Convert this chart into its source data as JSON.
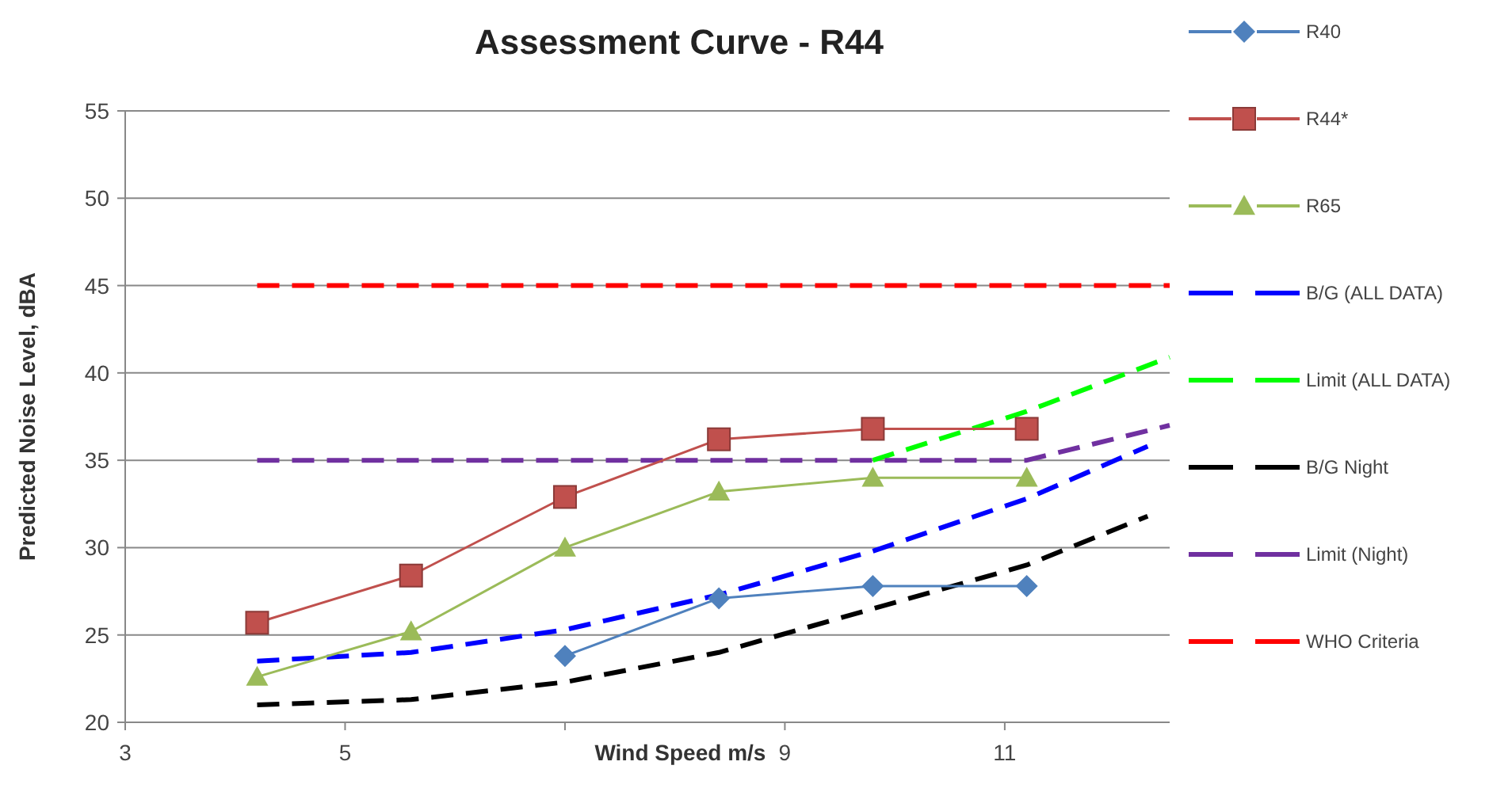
{
  "chart_data": {
    "type": "line",
    "title": "Assessment Curve - R44",
    "xlabel": "Wind Speed m/s",
    "ylabel": "Predicted Noise Level, dBA",
    "xlim": [
      3,
      12.5
    ],
    "xticks": [
      3,
      5,
      {
        "value": 7,
        "label": null
      },
      9,
      11
    ],
    "ylim": [
      20,
      55
    ],
    "yticks": [
      20,
      25,
      30,
      35,
      40,
      45,
      50,
      55
    ],
    "grid": "y",
    "legend": "right",
    "series": [
      {
        "name": "R40",
        "color": "#4f81bd",
        "marker": "diamond",
        "line_style": "solid",
        "x": [
          7,
          8.4,
          9.8,
          11.2
        ],
        "values": [
          23.8,
          27.1,
          27.8,
          27.8
        ]
      },
      {
        "name": "R44*",
        "color": "#c0504d",
        "marker": "square",
        "line_style": "solid",
        "x": [
          4.2,
          5.6,
          7,
          8.4,
          9.8,
          11.2
        ],
        "values": [
          25.7,
          28.4,
          32.9,
          36.2,
          36.8,
          36.8
        ]
      },
      {
        "name": "R65",
        "color": "#9bbb59",
        "marker": "triangle",
        "line_style": "solid",
        "x": [
          4.2,
          5.6,
          7,
          8.4,
          9.8,
          11.2
        ],
        "values": [
          22.6,
          25.2,
          30.0,
          33.2,
          34.0,
          34.0
        ]
      },
      {
        "name": "B/G (ALL DATA)",
        "color": "#0000ff",
        "marker": "none",
        "line_style": "dashed",
        "x": [
          4.2,
          5.6,
          7,
          8.4,
          9.8,
          11.2,
          12.3
        ],
        "values": [
          23.5,
          24.0,
          25.3,
          27.3,
          29.8,
          32.8,
          35.8
        ]
      },
      {
        "name": "Limit (ALL DATA)",
        "color": "#00ff00",
        "marker": "none",
        "line_style": "dashed",
        "x": [
          9.8,
          11.2,
          12.5
        ],
        "values": [
          35,
          37.8,
          40.9
        ]
      },
      {
        "name": "B/G Night",
        "color": "#000000",
        "marker": "none",
        "line_style": "dashed",
        "x": [
          4.2,
          5.6,
          7,
          8.4,
          9.8,
          11.2,
          12.3
        ],
        "values": [
          21.0,
          21.3,
          22.3,
          24.0,
          26.5,
          29.0,
          31.8
        ]
      },
      {
        "name": "Limit (Night)",
        "color": "#7030a0",
        "marker": "none",
        "line_style": "dashed",
        "x": [
          4.2,
          5.6,
          7,
          8.4,
          9.8,
          11.2,
          12.5
        ],
        "values": [
          35,
          35,
          35,
          35,
          35,
          35,
          37
        ]
      },
      {
        "name": "WHO Criteria",
        "color": "#ff0000",
        "marker": "none",
        "line_style": "dashed",
        "x": [
          4.2,
          12.5
        ],
        "values": [
          45,
          45
        ]
      }
    ]
  }
}
